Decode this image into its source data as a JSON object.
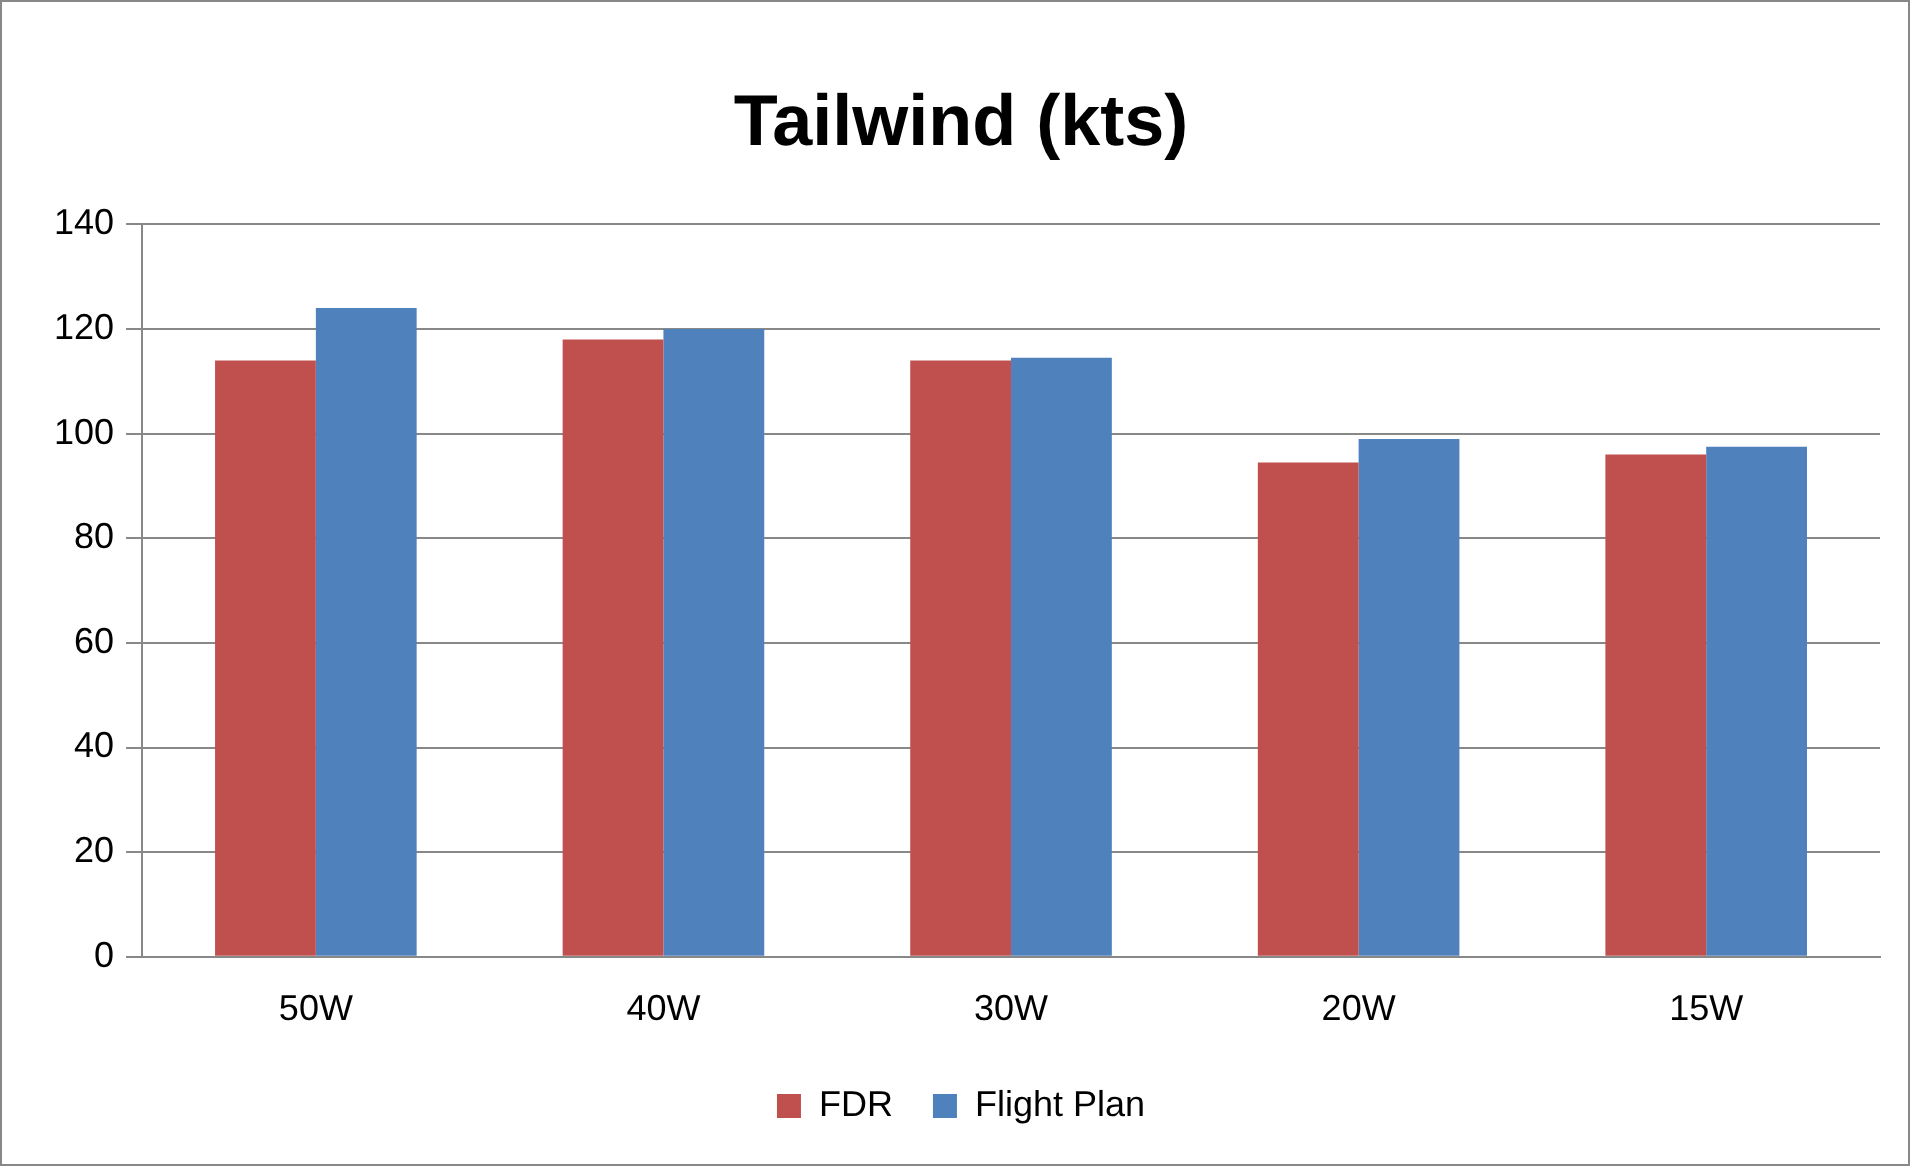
{
  "chart_data": {
    "type": "bar",
    "title": "Tailwind (kts)",
    "categories": [
      "50W",
      "40W",
      "30W",
      "20W",
      "15W"
    ],
    "series": [
      {
        "name": "FDR",
        "color": "#c0504d",
        "values": [
          114,
          118,
          114,
          94.5,
          96
        ]
      },
      {
        "name": "Flight Plan",
        "color": "#4f81bd",
        "values": [
          124,
          120,
          114.5,
          99,
          97.5
        ]
      }
    ],
    "ylim": [
      0,
      140
    ],
    "yticks": [
      0,
      20,
      40,
      60,
      80,
      100,
      120,
      140
    ],
    "grid": "y",
    "legend": "bottom"
  }
}
